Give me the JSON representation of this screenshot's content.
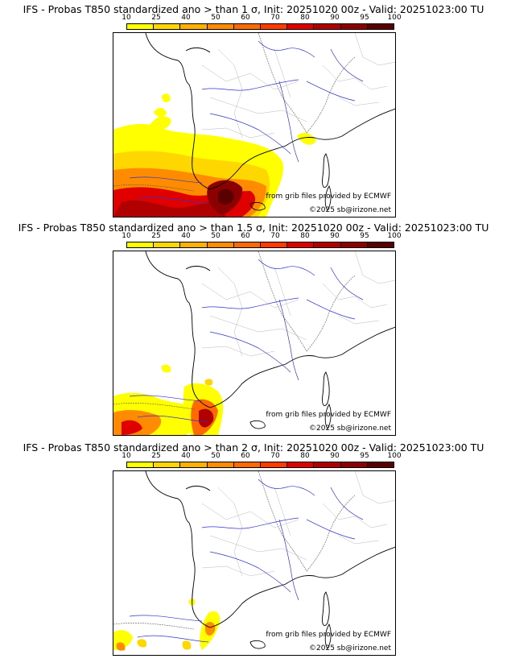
{
  "panels": [
    {
      "title": "IFS - Probas T850  standardized ano > than 1 σ, Init: 20251020 00z - Valid: 20251023:00 TU",
      "credit_source": "from grib files provided by ECMWF",
      "credit_copy": "©2025 sb@irizone.net"
    },
    {
      "title": "IFS - Probas T850  standardized ano > than 1.5 σ, Init: 20251020 00z - Valid: 20251023:00 TU",
      "credit_source": "from grib files provided by ECMWF",
      "credit_copy": "©2025 sb@irizone.net"
    },
    {
      "title": "IFS - Probas T850  standardized ano > than 2 σ, Init: 20251020 00z - Valid: 20251023:00 TU",
      "credit_source": "from grib files provided by ECMWF",
      "credit_copy": "©2025 sb@irizone.net"
    }
  ],
  "colorbar": {
    "labels": [
      "10",
      "25",
      "40",
      "50",
      "60",
      "70",
      "80",
      "90",
      "95",
      "100"
    ],
    "colors": [
      "#ffff00",
      "#ffd700",
      "#ffb000",
      "#ff8c00",
      "#ff6a00",
      "#ff3c00",
      "#e00000",
      "#b00000",
      "#8b0000",
      "#5a0000"
    ]
  }
}
